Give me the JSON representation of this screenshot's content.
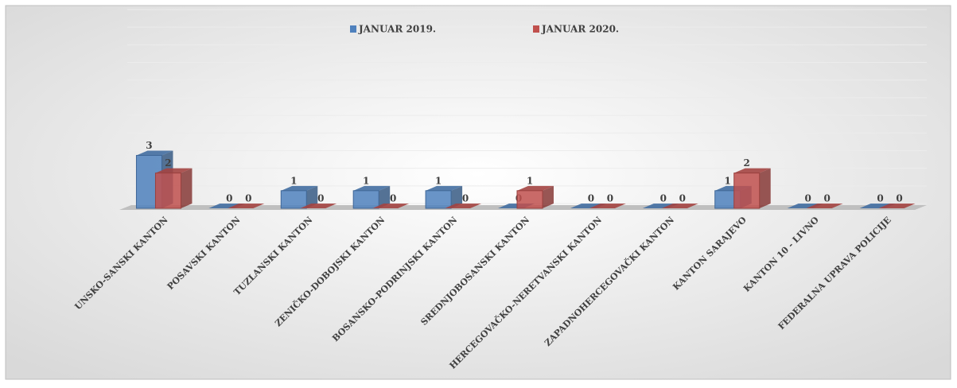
{
  "chart_data": {
    "type": "bar3d",
    "categories": [
      "UNSKO-SANSKI KANTON",
      "POSAVSKI KANTON",
      "TUZLANSKI KANTON",
      "ZENIČKO-DOBOJSKI KANTON",
      "BOSANSKO-PODRINJSKI KANTON",
      "SREDNJOBOSANSKI KANTON",
      "HERCEGOVAČKO-NERETVANSKI KANTON",
      "ZAPADNOHERCEGOVAČKI KANTON",
      "KANTON SARAJEVO",
      "KANTON 10 - LIVNO",
      "FEDERALNA UPRAVA POLICIJE"
    ],
    "series": [
      {
        "name": "JANUAR 2019.",
        "color": "#4f81bd",
        "values": [
          3,
          0,
          1,
          1,
          1,
          0,
          0,
          0,
          1,
          0,
          0
        ]
      },
      {
        "name": "JANUAR 2020.",
        "color": "#c0504d",
        "values": [
          2,
          0,
          0,
          0,
          0,
          1,
          0,
          0,
          2,
          0,
          0
        ]
      }
    ],
    "ylim": [
      0,
      11
    ],
    "yticks": [
      0,
      1,
      2,
      3,
      4,
      5,
      6,
      7,
      8,
      9,
      10,
      11
    ],
    "grid": true,
    "legend": "top"
  }
}
